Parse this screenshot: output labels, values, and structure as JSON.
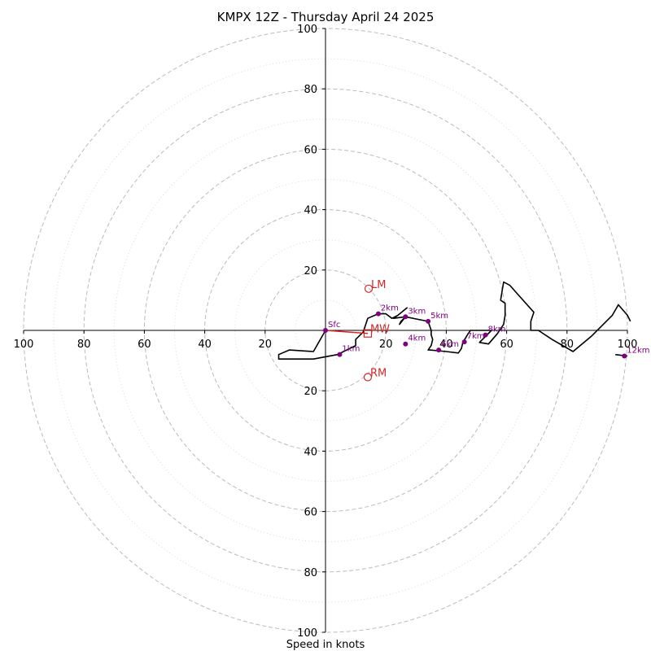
{
  "chart_data": {
    "type": "hodograph",
    "title": "KMPX 12Z - Thursday April 24 2025",
    "xlabel": "Speed in knots",
    "range": [
      -100,
      100
    ],
    "rings": {
      "major": [
        20,
        40,
        60,
        80,
        100
      ],
      "minor": [
        10,
        30,
        50,
        70,
        90
      ]
    },
    "ticks": {
      "x": [
        "100",
        "80",
        "60",
        "40",
        "20",
        "20",
        "40",
        "60",
        "80",
        "100"
      ],
      "x_values": [
        -100,
        -80,
        -60,
        -40,
        -20,
        20,
        40,
        60,
        80,
        100
      ],
      "y": [
        "100",
        "80",
        "60",
        "40",
        "20",
        "20",
        "40",
        "60",
        "80",
        "100"
      ],
      "y_values": [
        100,
        80,
        60,
        40,
        20,
        -20,
        -40,
        -60,
        -80,
        -100
      ]
    },
    "hodograph_trace": [
      [
        0,
        0
      ],
      [
        -4,
        -7
      ],
      [
        -12,
        -6.5
      ],
      [
        -15.5,
        -8
      ],
      [
        -15.5,
        -9.5
      ],
      [
        -4,
        -9.5
      ],
      [
        4,
        -8
      ],
      [
        10,
        -5
      ],
      [
        10,
        -3
      ],
      [
        12.5,
        -0.5
      ],
      [
        14,
        4
      ],
      [
        17.5,
        5.5
      ],
      [
        20,
        5.5
      ],
      [
        22,
        4
      ],
      [
        23,
        4.5
      ],
      [
        24,
        5
      ],
      [
        27,
        7.5
      ],
      [
        24,
        5
      ],
      [
        22.5,
        4
      ],
      [
        26.5,
        4.5
      ],
      [
        25,
        3
      ],
      [
        24.5,
        2
      ],
      [
        26.5,
        4.5
      ],
      [
        34,
        3
      ],
      [
        35,
        0
      ],
      [
        35,
        -1.5
      ],
      [
        35.5,
        -3
      ],
      [
        35,
        -5
      ],
      [
        34,
        -6.5
      ],
      [
        34.5,
        -6.5
      ],
      [
        40,
        -7
      ],
      [
        44,
        -7.5
      ],
      [
        45,
        -6
      ],
      [
        45.5,
        -4
      ],
      [
        47,
        -1.5
      ],
      [
        48,
        0
      ],
      [
        55,
        0
      ],
      [
        51,
        -4
      ],
      [
        54,
        -4.5
      ],
      [
        57,
        -1
      ],
      [
        59,
        2
      ],
      [
        59.5,
        5
      ],
      [
        59.5,
        9
      ],
      [
        58,
        10
      ],
      [
        58.5,
        13
      ],
      [
        59,
        16
      ],
      [
        61,
        15
      ],
      [
        69,
        6
      ],
      [
        68,
        3
      ],
      [
        68,
        0
      ],
      [
        70.5,
        0
      ],
      [
        75,
        -3
      ],
      [
        82,
        -7
      ],
      [
        88,
        -2
      ],
      [
        95,
        5
      ],
      [
        97,
        8.5
      ],
      [
        100,
        5
      ],
      [
        101,
        3
      ]
    ],
    "trace_tail": [
      [
        96,
        -8
      ],
      [
        100,
        -8.5
      ]
    ],
    "height_markers": [
      {
        "label": "Sfc",
        "u": 0,
        "v": 0
      },
      {
        "label": "1km",
        "u": 4.7,
        "v": -8
      },
      {
        "label": "2km",
        "u": 17.5,
        "v": 5.5
      },
      {
        "label": "3km",
        "u": 26.5,
        "v": 4.5
      },
      {
        "label": "4km",
        "u": 26.5,
        "v": -4.5
      },
      {
        "label": "5km",
        "u": 34,
        "v": 3
      },
      {
        "label": "6km",
        "u": 37.5,
        "v": -6.5
      },
      {
        "label": "7km",
        "u": 46,
        "v": -3.8
      },
      {
        "label": "8km",
        "u": 53,
        "v": -1.5
      },
      {
        "label": "12km",
        "u": 99,
        "v": -8.5
      }
    ],
    "motions": [
      {
        "label": "LM",
        "u": 14.3,
        "v": 13.8,
        "shape": "circle"
      },
      {
        "label": "MW",
        "u": 14,
        "v": -1,
        "shape": "square"
      },
      {
        "label": "RM",
        "u": 14,
        "v": -15.5,
        "shape": "circle"
      }
    ],
    "shear_vector": {
      "from": [
        0,
        0
      ],
      "to": [
        14,
        -1
      ]
    },
    "colors": {
      "trace": "#000000",
      "marker": "#800080",
      "motion": "#d62728",
      "grid": "#bbbbbb",
      "minor_grid": "#d9d9d9"
    },
    "grid": true
  }
}
